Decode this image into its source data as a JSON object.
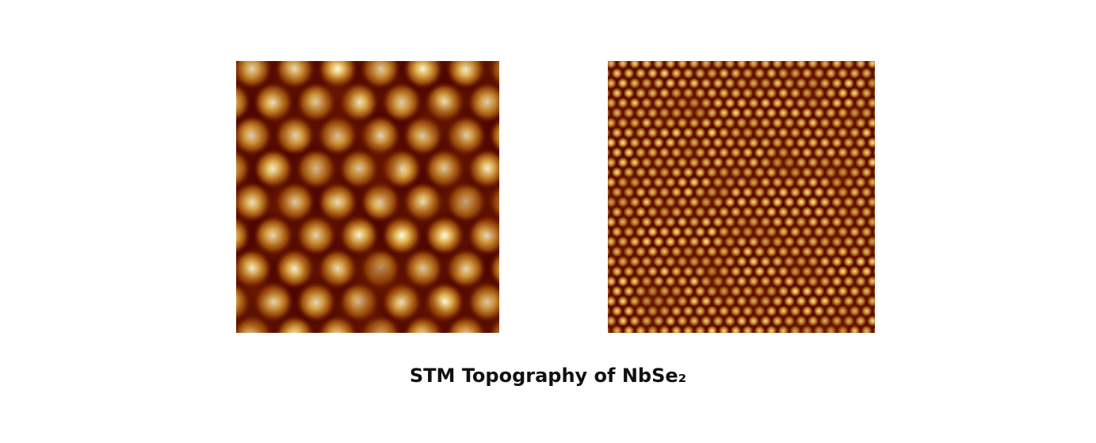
{
  "caption": "STM Topography of NbSe₂"
}
